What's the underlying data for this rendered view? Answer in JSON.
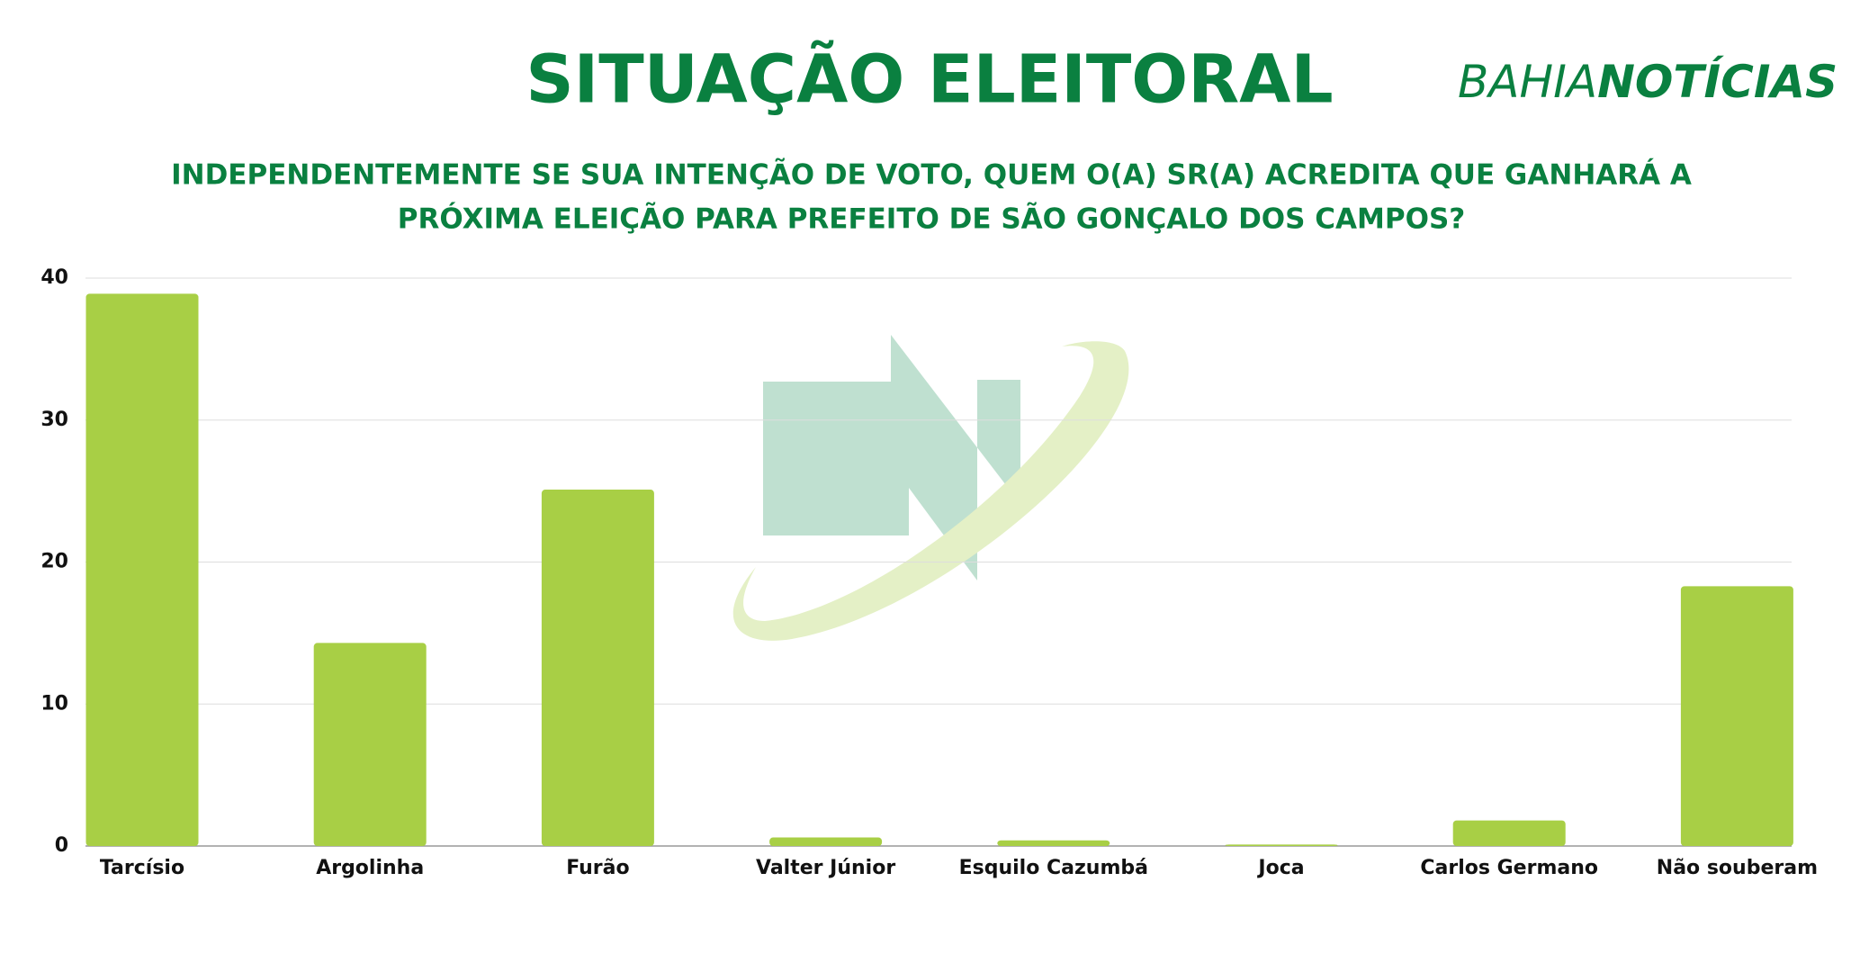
{
  "chart_data": {
    "type": "bar",
    "title": "SITUAÇÃO ELEITORAL",
    "subtitle": [
      "INDEPENDENTEMENTE SE SUA INTENÇÃO DE VOTO, QUEM O(A) SR(A) ACREDITA QUE GANHARÁ A",
      "PRÓXIMA ELEIÇÃO PARA PREFEITO DE SÃO GONÇALO DOS CAMPOS?"
    ],
    "logo": [
      "BAHIA",
      "NOTÍCIAS"
    ],
    "categories": [
      "Tarcísio",
      "Argolinha",
      "Furão",
      "Valter Júnior",
      "Esquilo Cazumbá",
      "Joca",
      "Carlos Germano",
      "Não souberam"
    ],
    "values": [
      38.9,
      14.3,
      25.1,
      0.6,
      0.4,
      0.1,
      1.8,
      18.3
    ],
    "color": "#a8cf45",
    "ylim": [
      0,
      40
    ],
    "yticks": [
      0,
      10,
      20,
      30,
      40
    ],
    "grid": true
  }
}
